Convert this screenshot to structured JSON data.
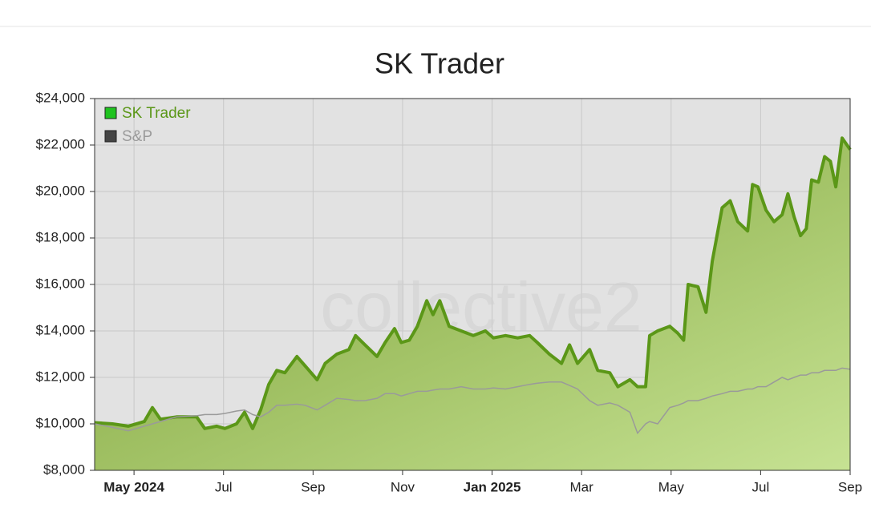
{
  "chart_data": {
    "type": "area",
    "title": "SK Trader",
    "watermark": "collective2",
    "x": [
      -0.88,
      -0.48,
      -0.13,
      0.23,
      0.41,
      0.59,
      0.95,
      1.4,
      1.58,
      1.85,
      2.03,
      2.29,
      2.47,
      2.65,
      2.83,
      3.01,
      3.19,
      3.37,
      3.64,
      3.82,
      4.09,
      4.27,
      4.53,
      4.8,
      4.95,
      5.16,
      5.43,
      5.61,
      5.82,
      5.97,
      6.15,
      6.33,
      6.54,
      6.68,
      6.83,
      7.04,
      7.31,
      7.58,
      7.85,
      8.03,
      8.3,
      8.57,
      8.84,
      9.01,
      9.28,
      9.55,
      9.73,
      9.91,
      10.18,
      10.36,
      10.63,
      10.81,
      11.08,
      11.25,
      11.43,
      11.52,
      11.7,
      11.97,
      12.15,
      12.28,
      12.38,
      12.6,
      12.78,
      12.92,
      13.14,
      13.32,
      13.49,
      13.71,
      13.82,
      13.94,
      14.12,
      14.3,
      14.48,
      14.61,
      14.75,
      14.89,
      15.02,
      15.14,
      15.29,
      15.43,
      15.56,
      15.68,
      15.82,
      16.0
    ],
    "series": [
      {
        "name": "SK Trader",
        "color": "#5b9718",
        "legend_color": "#1fc31f",
        "values": [
          10050,
          10000,
          9900,
          10100,
          10700,
          10200,
          10300,
          10300,
          9800,
          9900,
          9800,
          10000,
          10500,
          9800,
          10600,
          11700,
          12300,
          12200,
          12900,
          12500,
          11900,
          12600,
          13000,
          13200,
          13800,
          13400,
          12900,
          13500,
          14100,
          13500,
          13600,
          14200,
          15300,
          14700,
          15300,
          14200,
          14000,
          13800,
          14000,
          13700,
          13800,
          13700,
          13800,
          13500,
          13000,
          12600,
          13400,
          12600,
          13200,
          12300,
          12200,
          11600,
          11900,
          11600,
          11600,
          13800,
          14000,
          14200,
          13900,
          13600,
          16000,
          15900,
          14800,
          17000,
          19300,
          19600,
          18700,
          18300,
          20300,
          20200,
          19200,
          18700,
          19000,
          19900,
          18900,
          18100,
          18400,
          20500,
          20400,
          21500,
          21300,
          20200,
          22300,
          21800
        ]
      },
      {
        "name": "S&P",
        "color": "#9a9a9a",
        "legend_color": "#444444",
        "values": [
          10000,
          9850,
          9700,
          9900,
          10000,
          10100,
          10300,
          10350,
          10400,
          10400,
          10450,
          10550,
          10600,
          10400,
          10300,
          10500,
          10800,
          10800,
          10850,
          10800,
          10600,
          10800,
          11100,
          11050,
          11000,
          11000,
          11100,
          11300,
          11300,
          11200,
          11300,
          11400,
          11400,
          11450,
          11500,
          11500,
          11600,
          11500,
          11500,
          11550,
          11500,
          11600,
          11700,
          11750,
          11800,
          11800,
          11650,
          11500,
          11000,
          10800,
          10900,
          10800,
          10500,
          9600,
          10000,
          10100,
          10000,
          10700,
          10800,
          10900,
          11000,
          11000,
          11100,
          11200,
          11300,
          11400,
          11400,
          11500,
          11500,
          11600,
          11600,
          11800,
          12000,
          11900,
          12000,
          12100,
          12100,
          12200,
          12200,
          12300,
          12300,
          12300,
          12400,
          12350
        ]
      }
    ],
    "xlim": [
      -0.88,
      16
    ],
    "xticks": [
      {
        "value": 0,
        "label": "May 2024"
      },
      {
        "value": 2,
        "label": "Jul"
      },
      {
        "value": 4,
        "label": "Sep"
      },
      {
        "value": 6,
        "label": "Nov"
      },
      {
        "value": 8,
        "label": "Jan 2025"
      },
      {
        "value": 10,
        "label": "Mar"
      },
      {
        "value": 12,
        "label": "May"
      },
      {
        "value": 14,
        "label": "Jul"
      },
      {
        "value": 16,
        "label": "Sep"
      }
    ],
    "ylim": [
      8000,
      24000
    ],
    "yticks": [
      {
        "value": 8000,
        "label": "$8,000"
      },
      {
        "value": 10000,
        "label": "$10,000"
      },
      {
        "value": 12000,
        "label": "$12,000"
      },
      {
        "value": 14000,
        "label": "$14,000"
      },
      {
        "value": 16000,
        "label": "$16,000"
      },
      {
        "value": 18000,
        "label": "$18,000"
      },
      {
        "value": 20000,
        "label": "$20,000"
      },
      {
        "value": 22000,
        "label": "$22,000"
      },
      {
        "value": 24000,
        "label": "$24,000"
      }
    ],
    "grid": true,
    "legend": "top-left"
  }
}
